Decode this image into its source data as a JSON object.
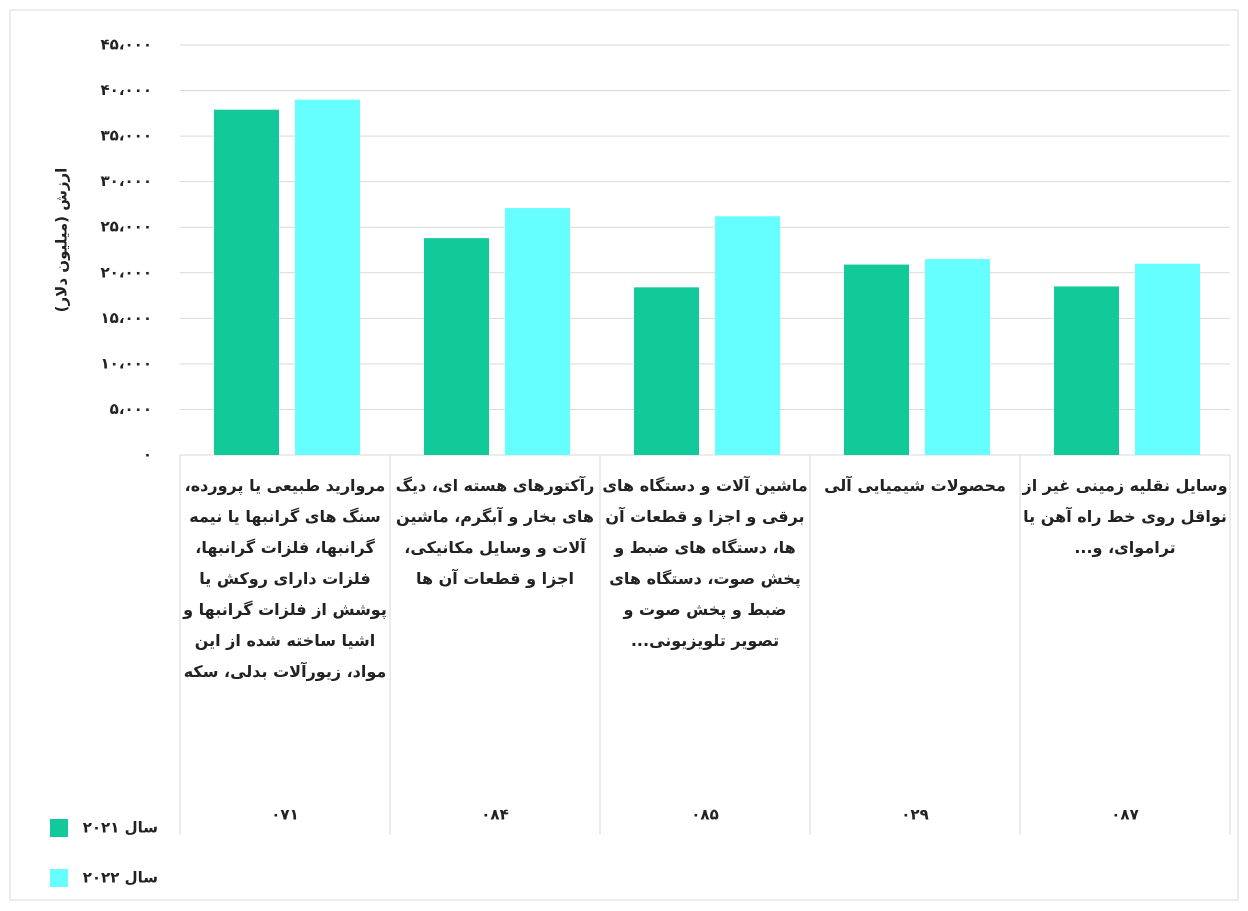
{
  "chart_data": {
    "type": "bar",
    "y_label": "ارزش (میلیون دلار)",
    "categories": [
      "مروارید طبیعی یا پرورده، سنگ های گرانبها یا نیمه گرانبها، فلزات گرانبها، فلزات دارای روکش یا پوشش از فلزات گرانبها و اشیا ساخته شده از این مواد، زیورآلات بدلی، سکه",
      "رآکتورهای هسته ای، دیگ های بخار و آبگرم، ماشین آلات و وسایل مکانیکی، اجزا و قطعات آن ها",
      "ماشین آلات و دستگاه های برقی و اجزا و قطعات آن ها، دستگاه های ضبط و پخش صوت، دستگاه های ضبط و پخش صوت و تصویر تلویزیونی...",
      "محصولات شیمیایی آلی",
      "وسایل نقلیه زمینی غیر از نواقل روی خط راه آهن یا تراموای، و..."
    ],
    "codes": [
      "۰۷۱",
      "۰۸۴",
      "۰۸۵",
      "۰۲۹",
      "۰۸۷"
    ],
    "series": [
      {
        "name": "سال ۲۰۲۱",
        "color": "#12c99a",
        "values": [
          37900,
          23800,
          18400,
          20900,
          18500
        ]
      },
      {
        "name": "سال ۲۰۲۲",
        "color": "#66ffff",
        "values": [
          39000,
          27100,
          26200,
          21500,
          21000
        ]
      }
    ],
    "ylim": [
      0,
      45000
    ],
    "yticks": [
      {
        "value": 0,
        "label": "۰"
      },
      {
        "value": 5000,
        "label": "۵،۰۰۰"
      },
      {
        "value": 10000,
        "label": "۱۰،۰۰۰"
      },
      {
        "value": 15000,
        "label": "۱۵،۰۰۰"
      },
      {
        "value": 20000,
        "label": "۲۰،۰۰۰"
      },
      {
        "value": 25000,
        "label": "۲۵،۰۰۰"
      },
      {
        "value": 30000,
        "label": "۳۰،۰۰۰"
      },
      {
        "value": 35000,
        "label": "۳۵،۰۰۰"
      },
      {
        "value": 40000,
        "label": "۴۰،۰۰۰"
      },
      {
        "value": 45000,
        "label": "۴۵،۰۰۰"
      }
    ],
    "grid": true
  }
}
